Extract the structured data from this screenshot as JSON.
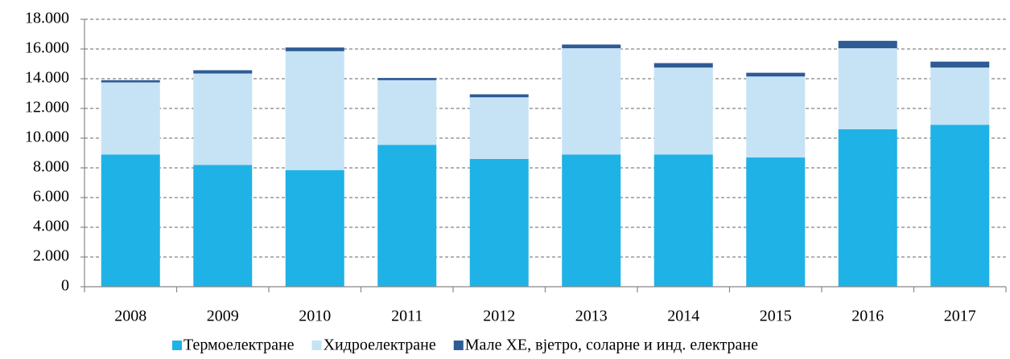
{
  "chart_data": {
    "type": "stacked_bar",
    "categories": [
      "2008",
      "2009",
      "2010",
      "2011",
      "2012",
      "2013",
      "2014",
      "2015",
      "2016",
      "2017"
    ],
    "series": [
      {
        "name": "Термоелектране",
        "color": "#1fb2e6",
        "values": [
          8900,
          8200,
          7850,
          9550,
          8600,
          8900,
          8900,
          8700,
          10600,
          10900
        ]
      },
      {
        "name": "Хидроелектране",
        "color": "#c5e3f5",
        "values": [
          4850,
          6150,
          8000,
          4350,
          4150,
          7150,
          5850,
          5450,
          5450,
          3850
        ]
      },
      {
        "name": "Мале ХЕ, вјетро, соларне и инд. електране",
        "color": "#2e5b94",
        "values": [
          150,
          220,
          250,
          150,
          200,
          250,
          300,
          250,
          500,
          400
        ]
      }
    ],
    "ylim": [
      0,
      18000
    ],
    "yticks": [
      0,
      {
        "value": 2000,
        "label": "2.000"
      },
      {
        "value": 4000,
        "label": "4.000"
      },
      {
        "value": 6000,
        "label": "6.000"
      },
      {
        "value": 8000,
        "label": "8.000"
      },
      {
        "value": 10000,
        "label": "10.000"
      },
      {
        "value": 12000,
        "label": "12.000"
      },
      {
        "value": 14000,
        "label": "14.000"
      },
      {
        "value": 16000,
        "label": "16.000"
      },
      {
        "value": 18000,
        "label": "18.000"
      }
    ],
    "grid": true,
    "legend": "bottom"
  }
}
